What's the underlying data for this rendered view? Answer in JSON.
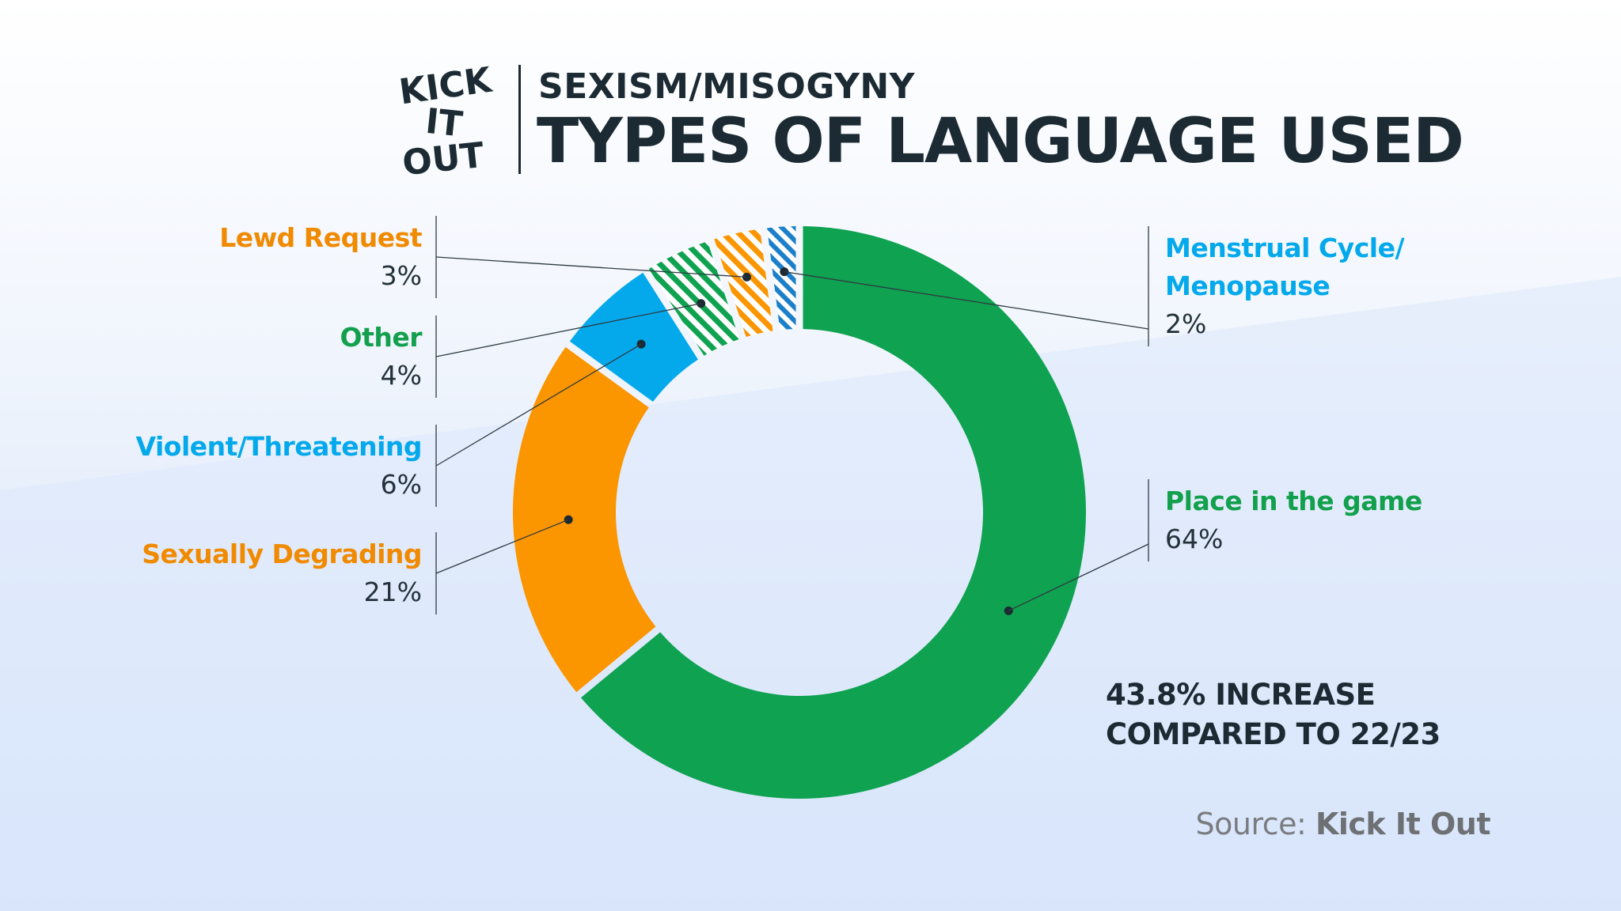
{
  "header": {
    "subtitle": "SEXISM/MISOGYNY",
    "title": "TYPES OF LANGUAGE USED",
    "logo_text": [
      "KICK",
      "IT",
      "OUT"
    ]
  },
  "colors": {
    "green": "#0fa250",
    "orange": "#fb9500",
    "blue": "#04a9ec",
    "blue_dark": "#1b80c9",
    "text_dark": "#1c2b33",
    "source_grey": "#7a7d80"
  },
  "chart_data": {
    "type": "pie",
    "title": "TYPES OF LANGUAGE USED",
    "subtitle": "SEXISM/MISOGYNY",
    "unit": "%",
    "slices": [
      {
        "name": "Place in the game",
        "value": 64,
        "label": "64%",
        "color": "#0fa250",
        "pattern": false,
        "side": "right"
      },
      {
        "name": "Sexually Degrading",
        "value": 21,
        "label": "21%",
        "color": "#fb9500",
        "pattern": false,
        "side": "left"
      },
      {
        "name": "Violent/Threatening",
        "value": 6,
        "label": "6%",
        "color": "#04a9ec",
        "pattern": false,
        "side": "left"
      },
      {
        "name": "Other",
        "value": 4,
        "label": "4%",
        "color": "#0fa250",
        "pattern": true,
        "side": "left"
      },
      {
        "name": "Lewd Request",
        "value": 3,
        "label": "3%",
        "color": "#fb9500",
        "pattern": true,
        "side": "left"
      },
      {
        "name": "Menstrual Cycle/\nMenopause",
        "value": 2,
        "label": "2%",
        "color": "#1b80c9",
        "pattern": true,
        "side": "right"
      }
    ]
  },
  "annotation": {
    "line1": "43.8% INCREASE",
    "line2": "COMPARED TO 22/23"
  },
  "source": {
    "prefix": "Source: ",
    "name": "Kick It Out"
  }
}
